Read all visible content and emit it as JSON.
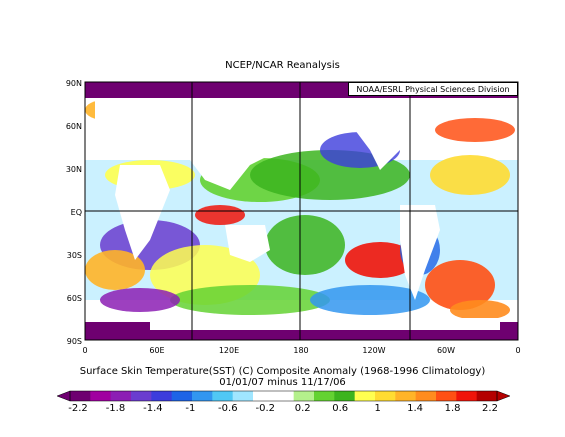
{
  "title": "NCEP/NCAR Reanalysis",
  "credit": "NOAA/ESRL Physical Sciences Division",
  "y_axis_labels": [
    "90N",
    "60N",
    "30N",
    "EQ",
    "30S",
    "60S",
    "90S"
  ],
  "x_axis_labels": [
    "0",
    "60E",
    "120E",
    "180",
    "120W",
    "60W",
    "0"
  ],
  "caption_line1": "Surface Skin Temperature(SST) (C) Composite Anomaly (1968-1996 Climatology)",
  "caption_line2": "01/01/07 minus 11/17/06",
  "colorbar": {
    "labels": [
      "-2.2",
      "-1.8",
      "-1.4",
      "-1",
      "-0.6",
      "-0.2",
      "0.2",
      "0.6",
      "1",
      "1.4",
      "1.8",
      "2.2"
    ],
    "colors": [
      "#6e0070",
      "#a000a0",
      "#8c1eb4",
      "#6a3ccf",
      "#3c3cdc",
      "#1e64e6",
      "#3296f0",
      "#50c8f5",
      "#a0e6ff",
      "#ffffff",
      "#ffffff",
      "#b4f08c",
      "#64d232",
      "#3cb41e",
      "#ffff50",
      "#ffdc32",
      "#ffb428",
      "#ff8c1e",
      "#ff5014",
      "#f0140a",
      "#b40000"
    ]
  }
}
